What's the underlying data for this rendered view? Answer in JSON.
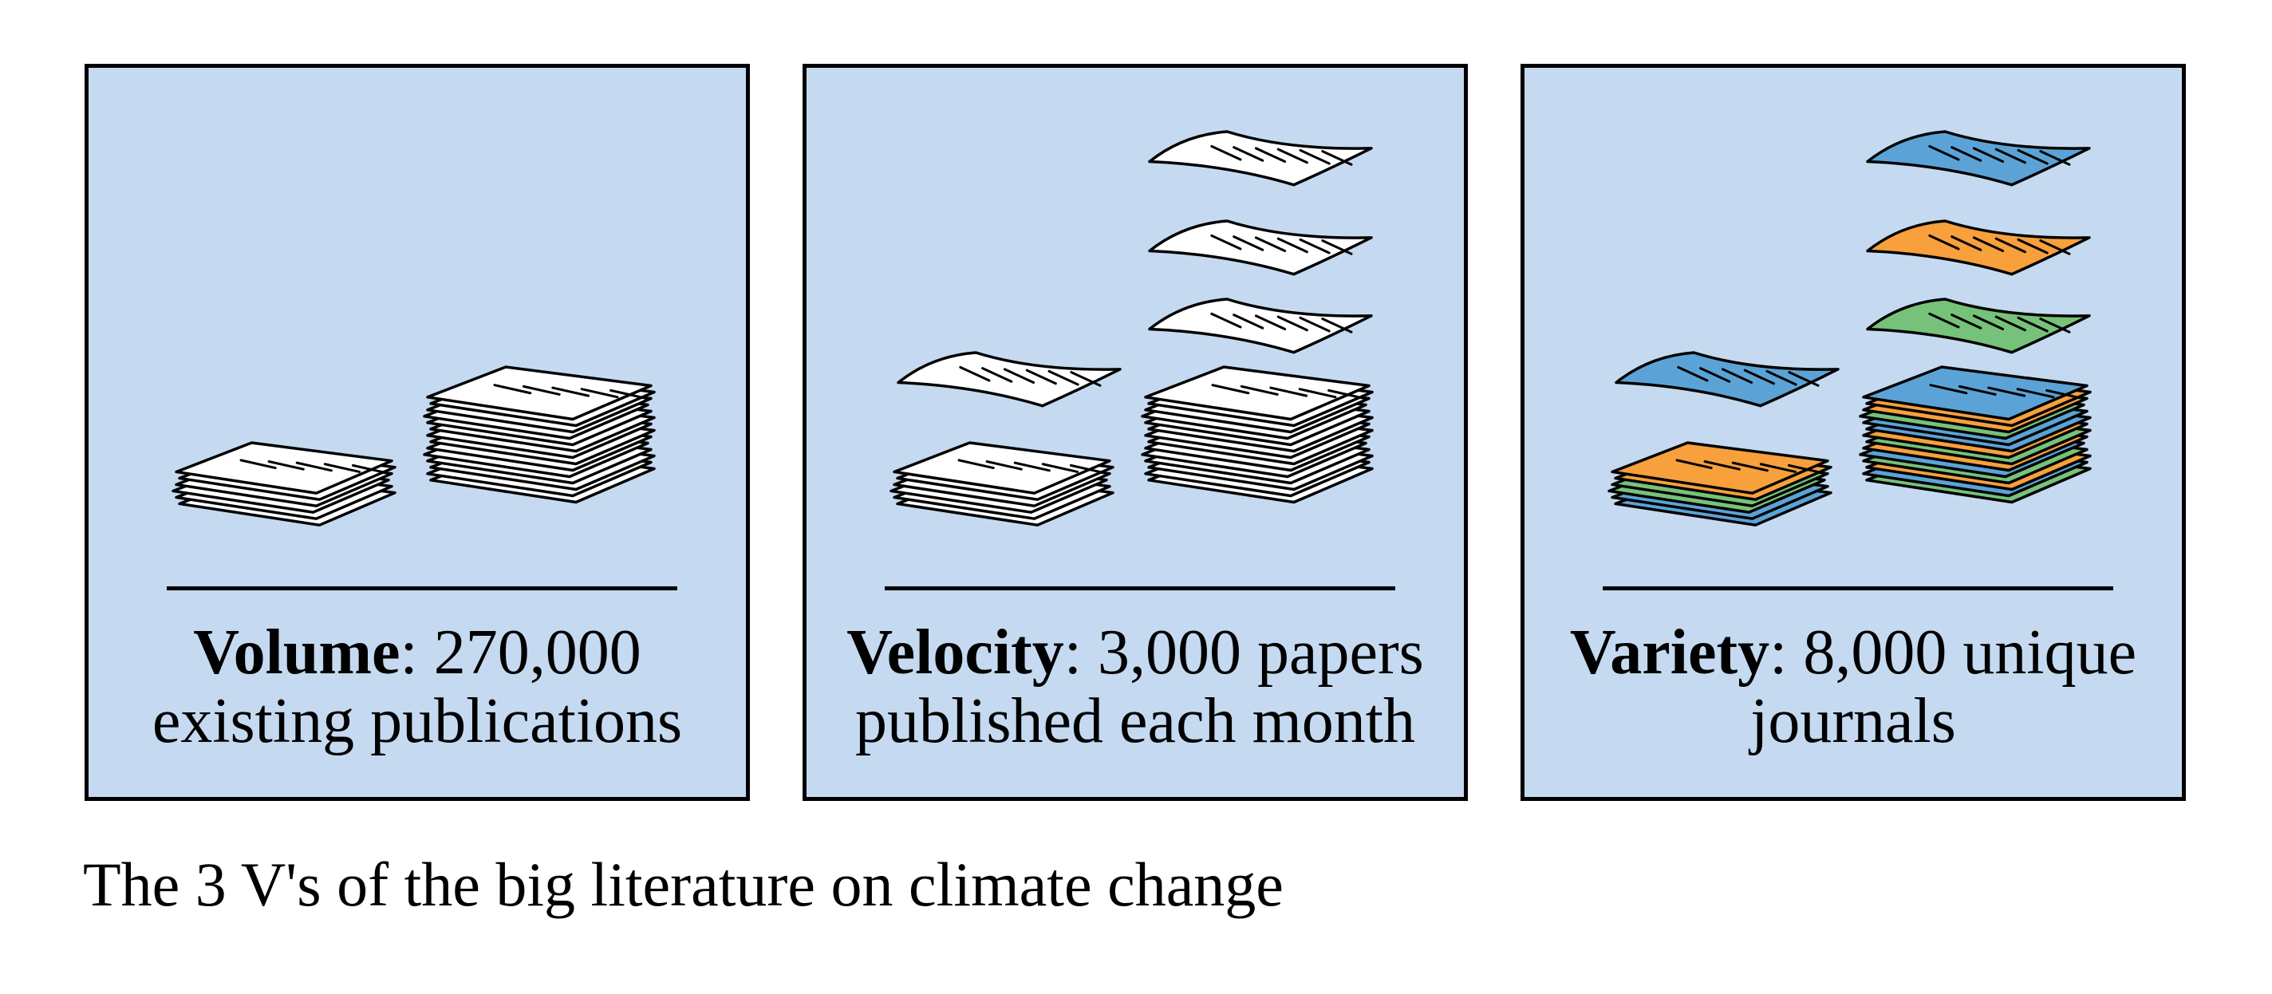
{
  "panels": [
    {
      "id": "volume",
      "term": "Volume",
      "rest": ": 270,000",
      "line2": "existing publications"
    },
    {
      "id": "velocity",
      "term": "Velocity",
      "rest": ": 3,000 papers",
      "line2": "published each month"
    },
    {
      "id": "variety",
      "term": "Variety",
      "rest": ": 8,000 unique",
      "line2": "journals"
    }
  ],
  "figure_caption": "The 3 V's of the big literature on climate change",
  "colors": {
    "panel_bg": "#c5daf0",
    "paper_white": "#ffffff",
    "paper_blue": "#5ba3d6",
    "paper_orange": "#f7a03c",
    "paper_green": "#76c27a",
    "outline": "#000000"
  }
}
